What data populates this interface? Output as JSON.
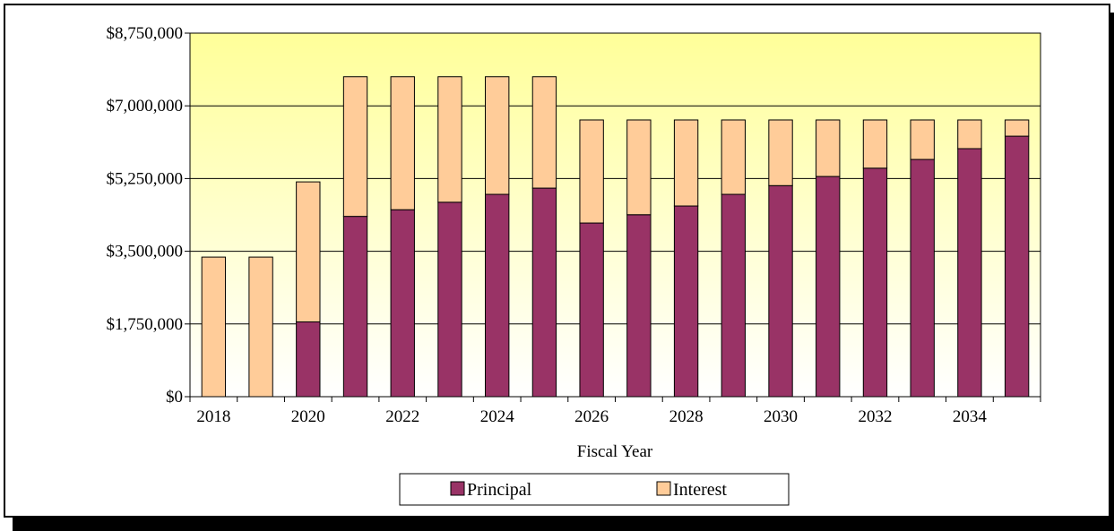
{
  "chart_data": {
    "type": "bar",
    "stacked": true,
    "x": [
      2018,
      2019,
      2020,
      2021,
      2022,
      2023,
      2024,
      2025,
      2026,
      2027,
      2028,
      2029,
      2030,
      2031,
      2032,
      2033,
      2034,
      2035
    ],
    "x_tick_labels": [
      "2018",
      "2020",
      "2022",
      "2024",
      "2026",
      "2028",
      "2030",
      "2032",
      "2034"
    ],
    "series": [
      {
        "name": "Principal",
        "color": "#993366",
        "values": [
          0,
          0,
          1800000,
          4340000,
          4500000,
          4680000,
          4870000,
          5020000,
          4180000,
          4380000,
          4590000,
          4870000,
          5080000,
          5300000,
          5500000,
          5710000,
          5970000,
          6270000
        ]
      },
      {
        "name": "Interest",
        "color": "#FFCC99",
        "values": [
          3360000,
          3360000,
          3370000,
          3360000,
          3200000,
          3020000,
          2830000,
          2680000,
          2480000,
          2280000,
          2070000,
          1790000,
          1580000,
          1360000,
          1160000,
          950000,
          690000,
          390000
        ]
      }
    ],
    "y_tick_labels": [
      "$0",
      "$1,750,000",
      "$3,500,000",
      "$5,250,000",
      "$7,000,000",
      "$8,750,000"
    ],
    "ylim": [
      0,
      8750000
    ],
    "y_ticks": [
      0,
      1750000,
      3500000,
      5250000,
      7000000,
      8750000
    ],
    "xlabel": "Fiscal Year",
    "ylabel": "",
    "title": "",
    "grid": true,
    "legend_position": "bottom",
    "plot_background": {
      "top": "#FFFF99",
      "bottom": "#FFFFFF"
    }
  }
}
